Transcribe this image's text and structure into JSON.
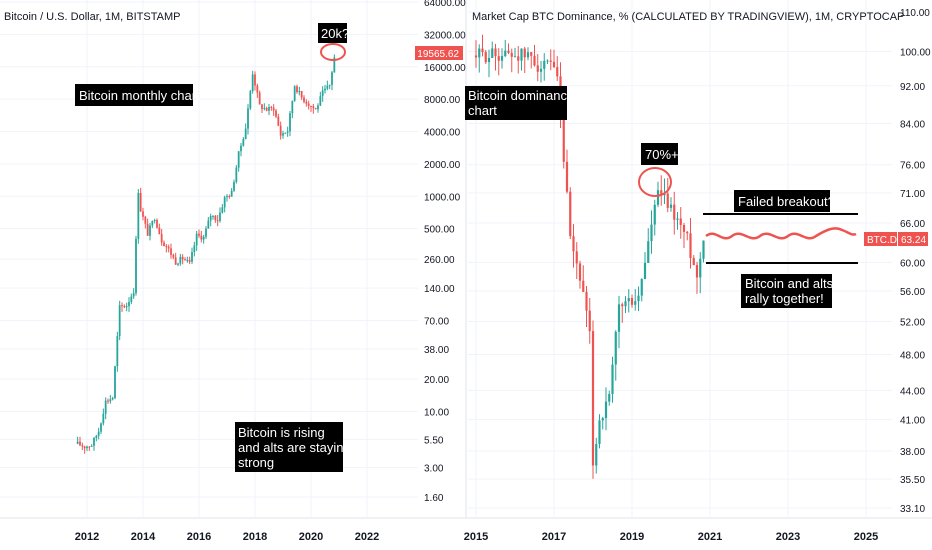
{
  "colors": {
    "up": "#26a69a",
    "down": "#ef5350",
    "text": "#131722",
    "grid": "#e0e3eb",
    "marker": "#ef5350",
    "label_bg": "#000000"
  },
  "chart_data": [
    {
      "type": "candlestick",
      "title": "Bitcoin / U.S. Dollar, 1M, BITSTAMP",
      "scale": "log",
      "y_ticks": [
        "64000.00",
        "32000.00",
        "16000.00",
        "8000.00",
        "4000.00",
        "2000.00",
        "1000.00",
        "500.00",
        "260.00",
        "140.00",
        "70.00",
        "38.00",
        "20.00",
        "10.00",
        "5.50",
        "3.00",
        "1.60"
      ],
      "x_ticks": [
        "2012",
        "2014",
        "2016",
        "2018",
        "2020",
        "2022"
      ],
      "last_price": "19565.62",
      "series": [
        {
          "date": "2011-09",
          "close": 5.0
        },
        {
          "date": "2011-12",
          "close": 4.7
        },
        {
          "date": "2012-03",
          "close": 4.9
        },
        {
          "date": "2012-06",
          "close": 6.6
        },
        {
          "date": "2012-09",
          "close": 12.4
        },
        {
          "date": "2012-12",
          "close": 13.5
        },
        {
          "date": "2013-03",
          "close": 93
        },
        {
          "date": "2013-06",
          "close": 97
        },
        {
          "date": "2013-09",
          "close": 133
        },
        {
          "date": "2013-11",
          "close": 1130
        },
        {
          "date": "2013-12",
          "close": 750
        },
        {
          "date": "2014-03",
          "close": 450
        },
        {
          "date": "2014-06",
          "close": 640
        },
        {
          "date": "2014-09",
          "close": 390
        },
        {
          "date": "2014-12",
          "close": 320
        },
        {
          "date": "2015-03",
          "close": 245
        },
        {
          "date": "2015-06",
          "close": 265
        },
        {
          "date": "2015-09",
          "close": 236
        },
        {
          "date": "2015-12",
          "close": 430
        },
        {
          "date": "2016-03",
          "close": 415
        },
        {
          "date": "2016-06",
          "close": 670
        },
        {
          "date": "2016-09",
          "close": 609
        },
        {
          "date": "2016-12",
          "close": 960
        },
        {
          "date": "2017-03",
          "close": 1080
        },
        {
          "date": "2017-06",
          "close": 2480
        },
        {
          "date": "2017-09",
          "close": 4340
        },
        {
          "date": "2017-12",
          "close": 14100
        },
        {
          "date": "2018-03",
          "close": 6930
        },
        {
          "date": "2018-06",
          "close": 6400
        },
        {
          "date": "2018-09",
          "close": 6600
        },
        {
          "date": "2018-12",
          "close": 3740
        },
        {
          "date": "2019-03",
          "close": 4100
        },
        {
          "date": "2019-06",
          "close": 10800
        },
        {
          "date": "2019-09",
          "close": 8300
        },
        {
          "date": "2019-12",
          "close": 7200
        },
        {
          "date": "2020-03",
          "close": 6400
        },
        {
          "date": "2020-06",
          "close": 9140
        },
        {
          "date": "2020-09",
          "close": 10780
        },
        {
          "date": "2020-11",
          "close": 19565.62
        }
      ],
      "annotations": [
        "Bitcoin monthly chart",
        "20k?",
        "Bitcoin is rising",
        "and alts are staying",
        "strong"
      ]
    },
    {
      "type": "candlestick",
      "title": "Market Cap BTC Dominance, % (CALCULATED BY TRADINGVIEW), 1M, CRYPTOCAP",
      "scale": "log",
      "y_ticks": [
        "110.00",
        "100.00",
        "92.00",
        "84.00",
        "76.00",
        "71.00",
        "66.00",
        "60.00",
        "56.00",
        "52.00",
        "48.00",
        "44.00",
        "41.00",
        "38.00",
        "35.50",
        "33.10"
      ],
      "x_ticks": [
        "2015",
        "2017",
        "2019",
        "2021",
        "2023",
        "2025"
      ],
      "last_value": "63.24",
      "symbol": "BTC.D",
      "series": [
        {
          "date": "2015-01",
          "close": 99.0
        },
        {
          "date": "2015-06",
          "close": 99.2
        },
        {
          "date": "2016-01",
          "close": 99.4
        },
        {
          "date": "2016-06",
          "close": 98.6
        },
        {
          "date": "2016-09",
          "close": 96.0
        },
        {
          "date": "2016-12",
          "close": 96.5
        },
        {
          "date": "2017-02",
          "close": 93.0
        },
        {
          "date": "2017-03",
          "close": 84.0
        },
        {
          "date": "2017-05",
          "close": 70.0
        },
        {
          "date": "2017-06",
          "close": 63.0
        },
        {
          "date": "2017-09",
          "close": 58.0
        },
        {
          "date": "2017-12",
          "close": 50.0
        },
        {
          "date": "2018-01",
          "close": 37.0
        },
        {
          "date": "2018-03",
          "close": 41.0
        },
        {
          "date": "2018-06",
          "close": 43.0
        },
        {
          "date": "2018-09",
          "close": 54.0
        },
        {
          "date": "2018-12",
          "close": 54.5
        },
        {
          "date": "2019-03",
          "close": 55.0
        },
        {
          "date": "2019-06",
          "close": 63.0
        },
        {
          "date": "2019-09",
          "close": 71.0
        },
        {
          "date": "2019-12",
          "close": 69.0
        },
        {
          "date": "2020-03",
          "close": 66.5
        },
        {
          "date": "2020-06",
          "close": 63.5
        },
        {
          "date": "2020-09",
          "close": 58.0
        },
        {
          "date": "2020-11",
          "close": 63.24
        }
      ],
      "annotations": [
        "Bitcoin dominance",
        "chart",
        "70%+",
        "Failed breakout?",
        "Bitcoin and alts",
        "rally together!"
      ]
    }
  ]
}
